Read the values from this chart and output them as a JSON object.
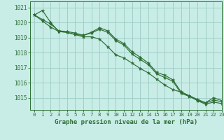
{
  "background_color": "#c8ece6",
  "grid_color": "#a0d0c8",
  "line_color": "#2d6e35",
  "title": "Graphe pression niveau de la mer (hPa)",
  "xlim": [
    -0.5,
    23
  ],
  "ylim": [
    1014.2,
    1021.4
  ],
  "yticks": [
    1015,
    1016,
    1017,
    1018,
    1019,
    1020,
    1021
  ],
  "xtick_labels": [
    "0",
    "1",
    "2",
    "3",
    "4",
    "5",
    "6",
    "7",
    "8",
    "9",
    "10",
    "11",
    "12",
    "13",
    "14",
    "15",
    "16",
    "17",
    "18",
    "19",
    "20",
    "21",
    "22",
    "23"
  ],
  "xtick_positions": [
    0,
    1,
    2,
    3,
    4,
    5,
    6,
    7,
    8,
    9,
    10,
    11,
    12,
    13,
    14,
    15,
    16,
    17,
    18,
    19,
    20,
    21,
    22,
    23
  ],
  "series": [
    {
      "x": [
        0,
        1,
        2,
        3,
        4,
        5,
        6,
        7,
        8,
        9,
        10,
        11,
        12,
        13,
        14,
        15,
        16,
        17,
        18,
        19,
        20,
        21,
        22,
        23
      ],
      "y": [
        1020.5,
        1020.8,
        1020.0,
        1019.4,
        1019.35,
        1019.2,
        1019.15,
        1019.3,
        1019.55,
        1019.35,
        1018.8,
        1018.5,
        1017.9,
        1017.55,
        1017.2,
        1016.6,
        1016.35,
        1016.1,
        1015.3,
        1015.1,
        1014.85,
        1014.65,
        1014.85,
        1014.75
      ]
    },
    {
      "x": [
        0,
        1,
        2,
        3,
        4,
        5,
        6,
        7,
        8,
        9,
        10,
        11,
        12,
        13,
        14,
        15,
        16,
        17,
        18,
        19,
        20,
        21,
        22,
        23
      ],
      "y": [
        1020.5,
        1020.1,
        1019.7,
        1019.4,
        1019.35,
        1019.2,
        1019.05,
        1019.05,
        1018.9,
        1018.4,
        1017.85,
        1017.65,
        1017.3,
        1016.95,
        1016.65,
        1016.25,
        1015.85,
        1015.55,
        1015.38,
        1015.12,
        1014.82,
        1014.58,
        1014.72,
        1014.62
      ]
    },
    {
      "x": [
        0,
        1,
        2,
        3,
        4,
        5,
        6,
        7,
        8,
        9,
        10,
        11,
        12,
        13,
        14,
        15,
        16,
        17,
        18,
        19,
        20,
        21,
        22,
        23
      ],
      "y": [
        1020.5,
        1020.2,
        1019.9,
        1019.45,
        1019.4,
        1019.3,
        1019.15,
        1019.35,
        1019.65,
        1019.45,
        1018.9,
        1018.6,
        1018.05,
        1017.7,
        1017.3,
        1016.7,
        1016.5,
        1016.2,
        1015.4,
        1015.15,
        1014.9,
        1014.68,
        1015.0,
        1014.82
      ]
    }
  ]
}
